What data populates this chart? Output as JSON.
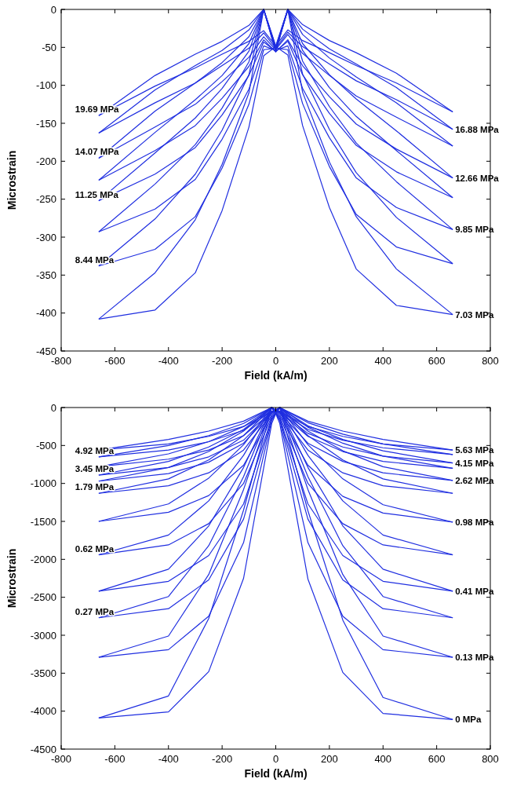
{
  "chart_data": [
    {
      "type": "line",
      "xlabel": "Field (kA/m)",
      "ylabel": "Microstrain",
      "xlim": [
        -800,
        800
      ],
      "xticks": [
        -800,
        -600,
        -400,
        -200,
        0,
        200,
        400,
        600,
        800
      ],
      "ylim": [
        -450,
        0
      ],
      "yticks": [
        -450,
        -400,
        -350,
        -300,
        -250,
        -200,
        -150,
        -100,
        -50,
        0
      ],
      "x": [
        660,
        450,
        300,
        200,
        100,
        45,
        0,
        -45,
        -100,
        -200,
        -300,
        -450,
        -660
      ],
      "series": [
        {
          "color": "#1f2ee0",
          "values": [
            -402,
            -390,
            -342,
            -261,
            -153,
            -60,
            -49,
            0,
            -110,
            -204,
            -277,
            -347,
            -408
          ]
        },
        {
          "name": "7.03 MPa",
          "color": "#1f2ee0",
          "x": [
            -660,
            -450,
            -300,
            -200,
            -100,
            -45,
            0,
            45,
            100,
            200,
            300,
            450,
            660
          ],
          "values": [
            -408,
            -396,
            -347,
            -265,
            -155,
            -61,
            -49,
            0,
            -109,
            -201,
            -273,
            -342,
            -402
          ]
        },
        {
          "name": "8.44 MPa",
          "color": "#1f2ee0",
          "values": [
            -335,
            -313,
            -270,
            -207,
            -124,
            -53,
            -51,
            0,
            -86,
            -159,
            -217,
            -276,
            -338
          ]
        },
        {
          "color": "#1f2ee0",
          "x": [
            -660,
            -450,
            -300,
            -200,
            -100,
            -45,
            0,
            45,
            100,
            200,
            300,
            450,
            660
          ],
          "values": [
            -338,
            -316,
            -273,
            -209,
            -125,
            -53,
            -51,
            0,
            -85,
            -158,
            -215,
            -274,
            -335
          ]
        },
        {
          "color": "#1f2ee0",
          "values": [
            -290,
            -261,
            -222,
            -169,
            -104,
            -48,
            -54,
            0,
            -69,
            -130,
            -178,
            -230,
            -293
          ]
        },
        {
          "name": "9.85 MPa",
          "color": "#1f2ee0",
          "x": [
            -660,
            -450,
            -300,
            -200,
            -100,
            -45,
            0,
            45,
            100,
            200,
            300,
            450,
            660
          ],
          "values": [
            -293,
            -263,
            -224,
            -171,
            -105,
            -48,
            -54,
            0,
            -68,
            -128,
            -176,
            -227,
            -290
          ]
        },
        {
          "name": "11.25 MPa",
          "color": "#1f2ee0",
          "values": [
            -248,
            -214,
            -179,
            -137,
            -86,
            -42,
            -55,
            0,
            -55,
            -104,
            -143,
            -189,
            -252
          ]
        },
        {
          "color": "#1f2ee0",
          "x": [
            -660,
            -450,
            -300,
            -200,
            -100,
            -45,
            0,
            45,
            100,
            200,
            300,
            450,
            660
          ],
          "values": [
            -252,
            -217,
            -182,
            -139,
            -87,
            -43,
            -55,
            0,
            -54,
            -103,
            -141,
            -186,
            -248
          ]
        },
        {
          "color": "#1f2ee0",
          "values": [
            -222,
            -184,
            -151,
            -115,
            -74,
            -40,
            -56,
            0,
            -45,
            -87,
            -119,
            -162,
            -225
          ]
        },
        {
          "name": "12.66 MPa",
          "color": "#1f2ee0",
          "x": [
            -660,
            -450,
            -300,
            -200,
            -100,
            -45,
            0,
            45,
            100,
            200,
            300,
            450,
            660
          ],
          "values": [
            -225,
            -186,
            -153,
            -117,
            -75,
            -40,
            -56,
            0,
            -45,
            -86,
            -118,
            -160,
            -222
          ]
        },
        {
          "name": "14.07 MPa",
          "color": "#1f2ee0",
          "values": [
            -180,
            -142,
            -114,
            -87,
            -58,
            -33,
            -53,
            0,
            -36,
            -70,
            -97,
            -134,
            -196
          ]
        },
        {
          "color": "#1f2ee0",
          "x": [
            -660,
            -450,
            -300,
            -200,
            -100,
            -45,
            0,
            45,
            100,
            200,
            300,
            450,
            660
          ],
          "values": [
            -196,
            -155,
            -125,
            -95,
            -63,
            -36,
            -53,
            0,
            -33,
            -64,
            -89,
            -123,
            -180
          ]
        },
        {
          "color": "#1f2ee0",
          "values": [
            -158,
            -119,
            -94,
            -72,
            -49,
            -30,
            -51,
            0,
            -27,
            -54,
            -74,
            -106,
            -163
          ]
        },
        {
          "name": "16.88 MPa",
          "color": "#1f2ee0",
          "x": [
            -660,
            -450,
            -300,
            -200,
            -100,
            -45,
            0,
            45,
            100,
            200,
            300,
            450,
            660
          ],
          "values": [
            -163,
            -123,
            -97,
            -74,
            -51,
            -31,
            -51,
            0,
            -26,
            -52,
            -72,
            -103,
            -158
          ]
        },
        {
          "name": "19.69 MPa",
          "color": "#1f2ee0",
          "values": [
            -135,
            -97,
            -74,
            -57,
            -41,
            -27,
            -48,
            0,
            -21,
            -42,
            -59,
            -87,
            -140
          ]
        },
        {
          "color": "#1f2ee0",
          "x": [
            -660,
            -450,
            -300,
            -200,
            -100,
            -45,
            0,
            45,
            100,
            200,
            300,
            450,
            660
          ],
          "values": [
            -140,
            -101,
            -77,
            -59,
            -42,
            -28,
            -48,
            0,
            -20,
            -41,
            -57,
            -84,
            -135
          ]
        }
      ]
    },
    {
      "type": "line",
      "xlabel": "Field (kA/m)",
      "ylabel": "Microstrain",
      "xlim": [
        -800,
        800
      ],
      "xticks": [
        -800,
        -600,
        -400,
        -200,
        0,
        200,
        400,
        600,
        800
      ],
      "ylim": [
        -4500,
        0
      ],
      "yticks": [
        -4500,
        -4000,
        -3500,
        -3000,
        -2500,
        -2000,
        -1500,
        -1000,
        -500,
        0
      ],
      "x": [
        660,
        400,
        250,
        120,
        15,
        0,
        -15,
        -120,
        -250,
        -400,
        -660
      ],
      "series": [
        {
          "color": "#1f2ee0",
          "values": [
            -4110,
            -4030,
            -3490,
            -2260,
            -210,
            -80,
            0,
            -1350,
            -2780,
            -3800,
            -4090
          ]
        },
        {
          "name": "0 MPa",
          "color": "#1f2ee0",
          "x": [
            -660,
            -400,
            -250,
            -120,
            -15,
            0,
            15,
            120,
            250,
            400,
            660
          ],
          "values": [
            -4090,
            -4010,
            -3480,
            -2250,
            -210,
            -80,
            0,
            -1360,
            -2800,
            -3820,
            -4110
          ]
        },
        {
          "color": "#1f2ee0",
          "values": [
            -3290,
            -3190,
            -2750,
            -1780,
            -170,
            -80,
            0,
            -1080,
            -2200,
            -3010,
            -3290
          ]
        },
        {
          "name": "0.13 MPa",
          "color": "#1f2ee0",
          "x": [
            -660,
            -400,
            -250,
            -120,
            -15,
            0,
            15,
            120,
            250,
            400,
            660
          ],
          "values": [
            -3290,
            -3190,
            -2750,
            -1780,
            -170,
            -80,
            0,
            -1080,
            -2200,
            -3010,
            -3290
          ]
        },
        {
          "name": "0.27 MPa",
          "color": "#1f2ee0",
          "values": [
            -2770,
            -2650,
            -2270,
            -1470,
            -150,
            -70,
            0,
            -910,
            -1820,
            -2490,
            -2770
          ]
        },
        {
          "color": "#1f2ee0",
          "x": [
            -660,
            -400,
            -250,
            -120,
            -15,
            0,
            15,
            120,
            250,
            400,
            660
          ],
          "values": [
            -2770,
            -2650,
            -2270,
            -1470,
            -150,
            -70,
            0,
            -910,
            -1820,
            -2490,
            -2770
          ]
        },
        {
          "color": "#1f2ee0",
          "values": [
            -2420,
            -2290,
            -1950,
            -1270,
            -140,
            -70,
            0,
            -790,
            -1560,
            -2130,
            -2420
          ]
        },
        {
          "name": "0.41 MPa",
          "color": "#1f2ee0",
          "x": [
            -660,
            -400,
            -250,
            -120,
            -15,
            0,
            15,
            120,
            250,
            400,
            660
          ],
          "values": [
            -2420,
            -2290,
            -1950,
            -1270,
            -140,
            -70,
            0,
            -790,
            -1560,
            -2130,
            -2420
          ]
        },
        {
          "name": "0.62 MPa",
          "color": "#1f2ee0",
          "values": [
            -1940,
            -1810,
            -1530,
            -1000,
            -120,
            -60,
            0,
            -630,
            -1230,
            -1680,
            -1940
          ]
        },
        {
          "color": "#1f2ee0",
          "x": [
            -660,
            -400,
            -250,
            -120,
            -15,
            0,
            15,
            120,
            250,
            400,
            660
          ],
          "values": [
            -1940,
            -1810,
            -1530,
            -1000,
            -120,
            -60,
            0,
            -630,
            -1230,
            -1680,
            -1940
          ]
        },
        {
          "color": "#1f2ee0",
          "values": [
            -1510,
            -1390,
            -1170,
            -760,
            -100,
            -50,
            0,
            -490,
            -930,
            -1270,
            -1500
          ]
        },
        {
          "name": "0.98 MPa",
          "color": "#1f2ee0",
          "x": [
            -660,
            -400,
            -250,
            -120,
            -15,
            0,
            15,
            120,
            250,
            400,
            660
          ],
          "values": [
            -1500,
            -1380,
            -1160,
            -760,
            -100,
            -50,
            0,
            -490,
            -940,
            -1280,
            -1510
          ]
        },
        {
          "name": "1.79 MPa",
          "color": "#1f2ee0",
          "values": [
            -1130,
            -1030,
            -860,
            -560,
            -80,
            -40,
            0,
            -370,
            -690,
            -940,
            -1130
          ]
        },
        {
          "color": "#1f2ee0",
          "x": [
            -660,
            -400,
            -250,
            -120,
            -15,
            0,
            15,
            120,
            250,
            400,
            660
          ],
          "values": [
            -1130,
            -1030,
            -860,
            -560,
            -80,
            -40,
            0,
            -370,
            -690,
            -940,
            -1130
          ]
        },
        {
          "color": "#1f2ee0",
          "values": [
            -960,
            -860,
            -710,
            -470,
            -70,
            -40,
            0,
            -310,
            -580,
            -790,
            -970
          ]
        },
        {
          "name": "2.62 MPa",
          "color": "#1f2ee0",
          "x": [
            -660,
            -400,
            -250,
            -120,
            -15,
            0,
            15,
            120,
            250,
            400,
            660
          ],
          "values": [
            -970,
            -870,
            -720,
            -470,
            -70,
            -40,
            0,
            -310,
            -570,
            -780,
            -960
          ]
        },
        {
          "name": "3.45 MPa",
          "color": "#1f2ee0",
          "values": [
            -800,
            -710,
            -580,
            -380,
            -60,
            -40,
            0,
            -290,
            -520,
            -710,
            -890
          ]
        },
        {
          "color": "#1f2ee0",
          "x": [
            -660,
            -400,
            -250,
            -120,
            -15,
            0,
            15,
            120,
            250,
            400,
            660
          ],
          "values": [
            -890,
            -790,
            -650,
            -430,
            -60,
            -40,
            0,
            -260,
            -470,
            -640,
            -800
          ]
        },
        {
          "color": "#1f2ee0",
          "values": [
            -730,
            -640,
            -520,
            -340,
            -60,
            -30,
            0,
            -250,
            -450,
            -610,
            -780
          ]
        },
        {
          "name": "4.15 MPa",
          "color": "#1f2ee0",
          "x": [
            -660,
            -400,
            -250,
            -120,
            -15,
            0,
            15,
            120,
            250,
            400,
            660
          ],
          "values": [
            -780,
            -680,
            -560,
            -370,
            -60,
            -30,
            0,
            -240,
            -420,
            -570,
            -730
          ]
        },
        {
          "name": "4.92 MPa",
          "color": "#1f2ee0",
          "values": [
            -620,
            -530,
            -430,
            -290,
            -50,
            -30,
            0,
            -210,
            -370,
            -500,
            -650
          ]
        },
        {
          "color": "#1f2ee0",
          "x": [
            -660,
            -400,
            -250,
            -120,
            -15,
            0,
            15,
            120,
            250,
            400,
            660
          ],
          "values": [
            -650,
            -560,
            -450,
            -300,
            -50,
            -30,
            0,
            -200,
            -350,
            -480,
            -620
          ]
        },
        {
          "color": "#1f2ee0",
          "values": [
            -560,
            -480,
            -380,
            -250,
            -50,
            -30,
            0,
            -180,
            -310,
            -420,
            -560
          ]
        },
        {
          "name": "5.63 MPa",
          "color": "#1f2ee0",
          "x": [
            -660,
            -400,
            -250,
            -120,
            -15,
            0,
            15,
            120,
            250,
            400,
            660
          ],
          "values": [
            -560,
            -480,
            -380,
            -250,
            -50,
            -30,
            0,
            -180,
            -310,
            -420,
            -560
          ]
        }
      ]
    }
  ]
}
